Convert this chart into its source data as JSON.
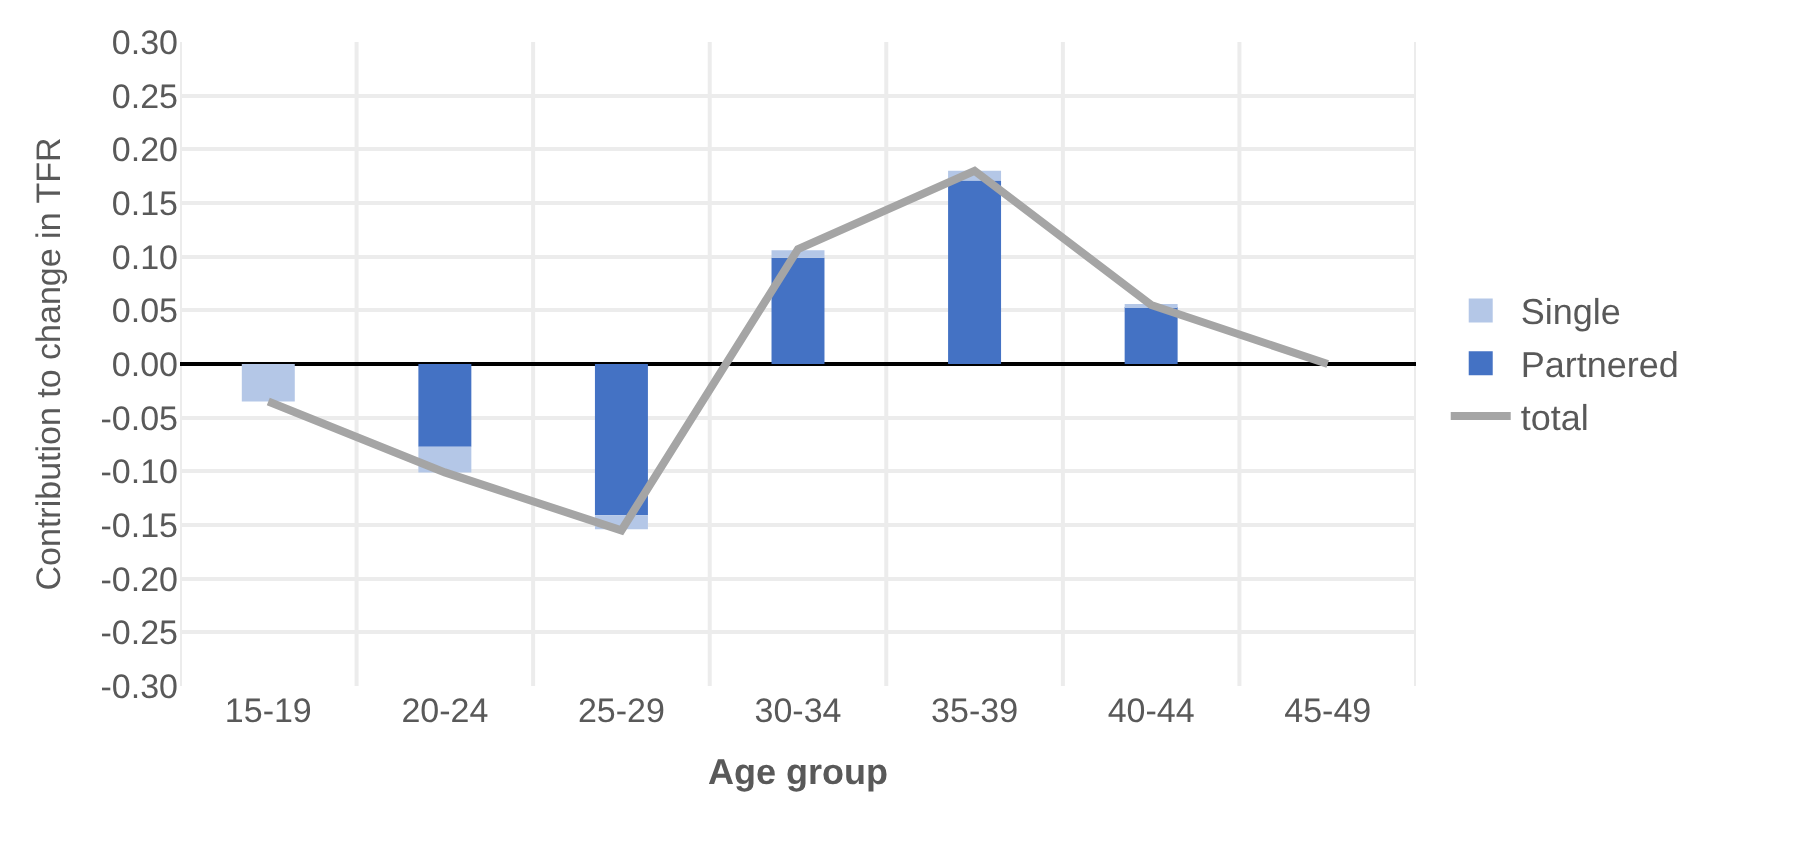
{
  "chart_data": {
    "type": "bar",
    "stacked": true,
    "xlabel": "Age group",
    "ylabel": "Contribution to change in TFR",
    "categories": [
      "15-19",
      "20-24",
      "25-29",
      "30-34",
      "35-39",
      "40-44",
      "45-49"
    ],
    "series": [
      {
        "name": "Partnered",
        "color": "#4472c4",
        "values": [
          0.0,
          -0.077,
          -0.141,
          0.099,
          0.171,
          0.053,
          0.0
        ]
      },
      {
        "name": "Single",
        "color": "#b4c7e7",
        "values": [
          -0.035,
          -0.024,
          -0.013,
          0.007,
          0.009,
          0.002,
          0.0
        ]
      },
      {
        "name": "total",
        "type": "line",
        "color": "#a5a5a5",
        "values": [
          -0.035,
          -0.101,
          -0.155,
          0.107,
          0.18,
          0.055,
          0.0
        ]
      }
    ],
    "ylim": [
      -0.3,
      0.3
    ],
    "yticks": [
      {
        "value": -0.3,
        "label": "-0.30"
      },
      {
        "value": -0.25,
        "label": "-0.25"
      },
      {
        "value": -0.2,
        "label": "-0.20"
      },
      {
        "value": -0.15,
        "label": "-0.15"
      },
      {
        "value": -0.1,
        "label": "-0.10"
      },
      {
        "value": -0.05,
        "label": "-0.05"
      },
      {
        "value": 0,
        "label": "0.00"
      },
      {
        "value": 0.05,
        "label": "0.05"
      },
      {
        "value": 0.1,
        "label": "0.10"
      },
      {
        "value": 0.15,
        "label": "0.15"
      },
      {
        "value": 0.2,
        "label": "0.20"
      },
      {
        "value": 0.25,
        "label": "0.25"
      },
      {
        "value": 0.3,
        "label": "0.30"
      }
    ],
    "grid": true,
    "legend": "right",
    "marker": "none"
  }
}
